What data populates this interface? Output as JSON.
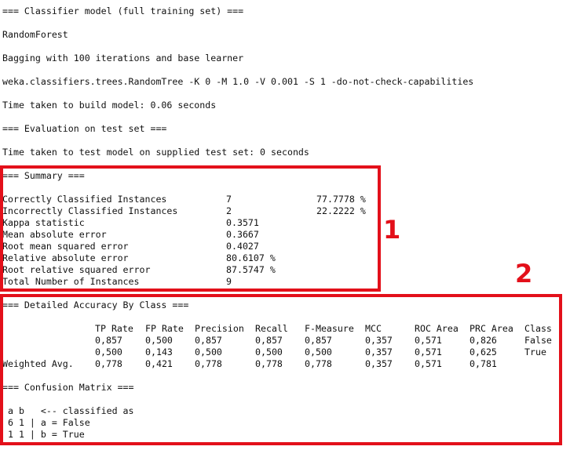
{
  "header": {
    "section_title": "=== Classifier model (full training set) ===",
    "classifier_name": "RandomForest",
    "bagging_desc": "Bagging with 100 iterations and base learner",
    "command": "weka.classifiers.trees.RandomTree -K 0 -M 1.0 -V 0.001 -S 1 -do-not-check-capabilities",
    "build_time": "Time taken to build model: 0.06 seconds",
    "eval_title": "=== Evaluation on test set ===",
    "test_time": "Time taken to test model on supplied test set: 0 seconds"
  },
  "summary": {
    "title": "=== Summary ===",
    "rows": [
      {
        "label": "Correctly Classified Instances",
        "value": "7",
        "extra": "77.7778 %"
      },
      {
        "label": "Incorrectly Classified Instances",
        "value": "2",
        "extra": "22.2222 %"
      },
      {
        "label": "Kappa statistic",
        "value": "0.3571",
        "extra": ""
      },
      {
        "label": "Mean absolute error",
        "value": "0.3667",
        "extra": ""
      },
      {
        "label": "Root mean squared error",
        "value": "0.4027",
        "extra": ""
      },
      {
        "label": "Relative absolute error",
        "value": "80.6107 %",
        "extra": ""
      },
      {
        "label": "Root relative squared error",
        "value": "87.5747 %",
        "extra": ""
      },
      {
        "label": "Total Number of Instances",
        "value": "9",
        "extra": ""
      }
    ]
  },
  "accuracy": {
    "title": "=== Detailed Accuracy By Class ===",
    "headers": [
      "TP Rate",
      "FP Rate",
      "Precision",
      "Recall",
      "F-Measure",
      "MCC",
      "ROC Area",
      "PRC Area",
      "Class"
    ],
    "rows": [
      {
        "label": "",
        "cells": [
          "0,857",
          "0,500",
          "0,857",
          "0,857",
          "0,857",
          "0,357",
          "0,571",
          "0,826",
          "False"
        ]
      },
      {
        "label": "",
        "cells": [
          "0,500",
          "0,143",
          "0,500",
          "0,500",
          "0,500",
          "0,357",
          "0,571",
          "0,625",
          "True"
        ]
      },
      {
        "label": "Weighted Avg.",
        "cells": [
          "0,778",
          "0,421",
          "0,778",
          "0,778",
          "0,778",
          "0,357",
          "0,571",
          "0,781",
          ""
        ]
      }
    ]
  },
  "confusion": {
    "title": "=== Confusion Matrix ===",
    "lines": [
      " a b   <-- classified as",
      " 6 1 | a = False",
      " 1 1 | b = True"
    ]
  },
  "annotations": {
    "box1_label": "1",
    "box2_label": "2",
    "color": "#e3101a"
  }
}
